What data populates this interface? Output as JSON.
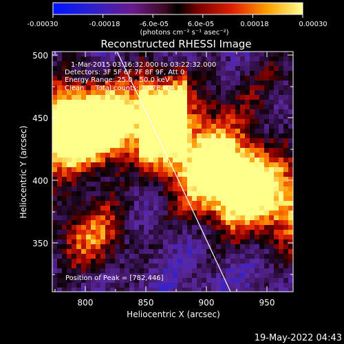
{
  "colorbar": {
    "tick_labels": [
      "-0.00030",
      "-0.00018",
      "-6.0e-05",
      "6.0e-05",
      "0.00018",
      "0.00030"
    ],
    "unit_label": "(photons cm⁻² s⁻¹ asec⁻²)",
    "range": [
      -0.0003,
      0.0003
    ]
  },
  "plot": {
    "title": "Reconstructed RHESSI Image",
    "xlabel": "Heliocentric X (arcsec)",
    "ylabel": "Heliocentric Y (arcsec)",
    "x_ticks": [
      "800",
      "850",
      "900",
      "950"
    ],
    "y_ticks": [
      "500",
      "450",
      "400",
      "350"
    ],
    "xlim": [
      773,
      968
    ],
    "ylim": [
      310,
      503
    ]
  },
  "annotations": {
    "time_range": "1-Mar-2015 03:16:32.000 to 03:22:32.000",
    "detectors": "Detectors: 3F 5F 6F 7F 8F 9F, Att 0",
    "energy": "Energy Range: 25.0 - 50.0 keV",
    "clean": "Clean     Total counts: 1.07E+04",
    "peak": "Position of Peak = [782,446]"
  },
  "footer": {
    "timestamp": "19-May-2022 04:43"
  },
  "colors": {
    "background": "#000000",
    "low": "#1a1aff",
    "mid": "#5a1a90",
    "high": "#ffff80"
  }
}
